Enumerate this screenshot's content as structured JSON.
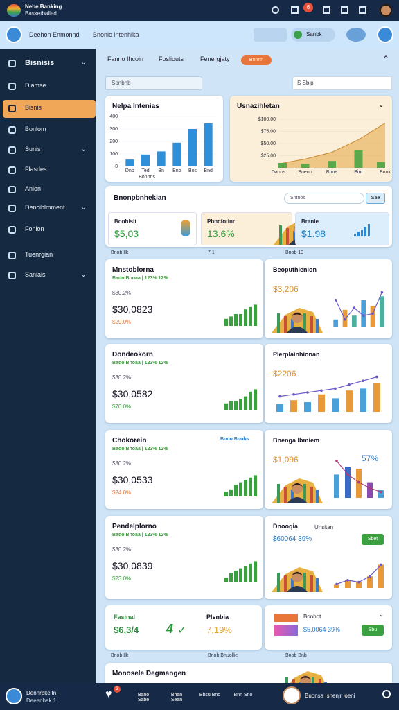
{
  "topbar": {
    "title": "Nebe Banking",
    "subtitle": "Basketballed",
    "badge": "6"
  },
  "header": {
    "user": "Deehon Enmonnd",
    "subtitle": "Bnonic Intenhika",
    "button": "Sanbk"
  },
  "sidebar": [
    {
      "label": "Bisnisis",
      "expandable": true
    },
    {
      "label": "Diamse"
    },
    {
      "label": "Bisnis",
      "active": true
    },
    {
      "label": "Bonlom"
    },
    {
      "label": "Sunis",
      "expandable": true
    },
    {
      "label": "Flasdes"
    },
    {
      "label": "Anlon"
    },
    {
      "label": "Denciblmment",
      "expandable": true
    },
    {
      "label": "Fonlon"
    },
    {
      "label": "Tuenrgian"
    },
    {
      "label": "Saniais",
      "expandable": true
    }
  ],
  "tabs": [
    "Fanno Ihcoin",
    "Fosliouts",
    "Fenergjaty"
  ],
  "tab_active": "Bnnnn",
  "filters": {
    "select": "Sonbnb",
    "search": "S Sbip"
  },
  "sales_card": {
    "title": "Nelpa Intenias",
    "categories": [
      "Dnb",
      "Ted",
      "Bn",
      "Bno",
      "Bos",
      "Bnd"
    ],
    "values": [
      55,
      95,
      120,
      190,
      300,
      345
    ],
    "ylim": [
      0,
      400
    ],
    "yticks": [
      0,
      100,
      200,
      300,
      400
    ],
    "x_label": "Bonbns",
    "color": "#2f8fd8"
  },
  "growth_card": {
    "title": "Usnazihletan",
    "x": [
      "Danns",
      "Bneno",
      "Bnne",
      "Binr",
      "Bnnk"
    ],
    "values": [
      8,
      18,
      32,
      58,
      92
    ],
    "bars": [
      10,
      8,
      14,
      36,
      12
    ],
    "ylim": [
      0,
      100
    ],
    "yticks": [
      {
        "value": 25,
        "label": "$25.00"
      },
      {
        "value": 50,
        "label": "$50.00"
      },
      {
        "value": 75,
        "label": "$75.00"
      },
      {
        "value": 100,
        "label": "$100.00"
      }
    ],
    "area_color": "#e8b562",
    "bar_color": "#5aa84a"
  },
  "overview": {
    "title": "Bnonpbnhekian",
    "search": "Sntnos",
    "button": "Sae",
    "items": [
      {
        "label": "Bonhisit",
        "value": "$5,03",
        "color": "#2a9a3a"
      },
      {
        "label": "Pbncfotinr",
        "value": "13.6%",
        "color": "#2a9a3a"
      },
      {
        "label": "Branie",
        "value": "$1.98",
        "color": "#1a7fc0"
      }
    ]
  },
  "strip_top": [
    "Bnob  Ilk",
    "7  1",
    "Bnob  10"
  ],
  "rows": [
    {
      "left": {
        "title": "Mnstoblorna",
        "note": "Bado Bnoaa | 123% 12%",
        "sub": "$30.2%",
        "value": "$30,0823",
        "change": "$29.0%",
        "bars": [
          3,
          4,
          5,
          5,
          7,
          8,
          9
        ],
        "ylim": [
          0,
          10
        ]
      },
      "right": {
        "title": "Beoputhienlon",
        "value": "$3,206",
        "bars": [
          20,
          45,
          30,
          70,
          55,
          80
        ],
        "line": [
          70,
          20,
          50,
          30,
          35,
          90
        ],
        "bar_colors": [
          "#4aa0d8",
          "#e89a3a",
          "#4ab0a0",
          "#4aa0d8",
          "#e89a3a",
          "#4ab0a0"
        ],
        "ylim": [
          0,
          100
        ],
        "person": true
      }
    },
    {
      "left": {
        "title": "Dondeokorn",
        "note": "Bado Bnoaa | 123% 12%",
        "sub": "$30.2%",
        "value": "$30,0582",
        "change": "$70.0%",
        "bars": [
          3,
          4,
          4,
          5,
          6,
          8,
          9
        ],
        "ylim": [
          0,
          10
        ]
      },
      "right": {
        "title": "Plerplainhionan",
        "value": "$2206",
        "bars": [
          20,
          30,
          25,
          45,
          35,
          55,
          60,
          75
        ],
        "line": [
          40,
          45,
          50,
          55,
          60,
          70,
          80,
          90
        ],
        "bar_colors": [
          "#4aa0d8",
          "#e89a3a",
          "#4aa0d8",
          "#e89a3a",
          "#4aa0d8",
          "#e89a3a",
          "#4aa0d8",
          "#e89a3a"
        ],
        "ylim": [
          0,
          100
        ]
      }
    },
    {
      "left": {
        "title": "Chokorein",
        "tag": "Bnon Bnobs",
        "note": "Bado Bnoaa | 123% 12%",
        "sub": "$30.2%",
        "value": "$30,0533",
        "change": "$24.0%",
        "bars": [
          2,
          3,
          5,
          6,
          7,
          8,
          9
        ],
        "ylim": [
          0,
          10
        ]
      },
      "right": {
        "title": "Bnenga Ibmiem",
        "value": "$1,096",
        "extra": "57%",
        "bars": [
          60,
          80,
          75,
          40,
          20
        ],
        "line": [
          95,
          60,
          40,
          25,
          15
        ],
        "bar_colors": [
          "#4aa0d8",
          "#3a6ac8",
          "#e89a3a",
          "#8a4ab0",
          "#4aa0d8"
        ],
        "ylim": [
          0,
          100
        ],
        "person": true
      }
    },
    {
      "left": {
        "title": "Pendelplorno",
        "note": "Bado Bnoaa | 123% 12%",
        "sub": "$30.2%",
        "value": "$30,0839",
        "change": "$23.0%",
        "bars": [
          2,
          4,
          5,
          6,
          7,
          8,
          9
        ],
        "ylim": [
          0,
          10
        ]
      },
      "right": {
        "title": "Dnooqia",
        "tag": "Unsitan",
        "value": "$60064 39%",
        "button": "Sbet",
        "bars": [
          10,
          20,
          15,
          30,
          60
        ],
        "line": [
          10,
          20,
          15,
          30,
          60
        ],
        "bar_colors": [
          "#e89a3a",
          "#e89a3a",
          "#e89a3a",
          "#e89a3a",
          "#e89a3a"
        ],
        "ylim": [
          0,
          100
        ],
        "person": true
      }
    }
  ],
  "bottom_left": {
    "title1": "Fasinal",
    "value1": "$6,3/4",
    "big": "4",
    "title2": "Plsnbia",
    "value2": "7,19%"
  },
  "bottom_right": {
    "title": "Bonhot",
    "value": "$5,0064 39%",
    "button": "Sbu"
  },
  "strip_bottom": [
    "Bnob  Ilk",
    "Bnob  Bnuollie",
    "Bnob  Bnb"
  ],
  "banner": "Monosele Degmangen",
  "bottombar": {
    "user": "Dennrbkeltn",
    "sub": "Deeenhak 1",
    "badge": "3",
    "nav": [
      "Bano Sabe",
      "Bhan Sean",
      "Bbsu Bno",
      "Bnn Sno"
    ],
    "right": "Buonsa Ishenjr loeni"
  }
}
